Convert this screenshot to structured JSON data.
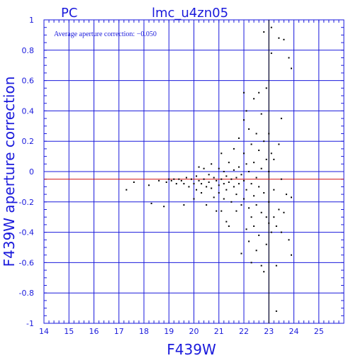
{
  "chart_data": {
    "type": "scatter",
    "title": "lmc_u4zn05",
    "subtitle": "PC",
    "xlabel": "F439W",
    "ylabel": "F439W aperture correction",
    "xlim": [
      14,
      26
    ],
    "ylim": [
      -1,
      1
    ],
    "x_ticks": [
      "14",
      "15",
      "16",
      "17",
      "18",
      "19",
      "20",
      "21",
      "22",
      "23",
      "24",
      "25"
    ],
    "y_ticks": [
      "1",
      "0.8",
      "0.6",
      "0.4",
      "0.2",
      "0",
      "-0.2",
      "-0.4",
      "-0.6",
      "-0.8",
      "-1"
    ],
    "grid": true,
    "annotation": "Average aperture correction: −0.050",
    "reference_lines": {
      "average_y": -0.05,
      "zero_y": 0,
      "vertical_x": 23
    },
    "colors": {
      "axis": "#1a1adc",
      "points": "#000000",
      "average_line": "#d11111"
    },
    "points": [
      [
        17.3,
        -0.12
      ],
      [
        17.6,
        -0.07
      ],
      [
        18.2,
        -0.09
      ],
      [
        18.3,
        -0.21
      ],
      [
        18.6,
        -0.06
      ],
      [
        18.8,
        -0.23
      ],
      [
        18.9,
        -0.07
      ],
      [
        19.0,
        -0.05
      ],
      [
        19.1,
        -0.06
      ],
      [
        19.2,
        -0.05
      ],
      [
        19.3,
        -0.08
      ],
      [
        19.4,
        -0.05
      ],
      [
        19.5,
        -0.06
      ],
      [
        19.6,
        -0.22
      ],
      [
        19.6,
        -0.08
      ],
      [
        19.7,
        -0.04
      ],
      [
        19.8,
        -0.1
      ],
      [
        19.9,
        -0.05
      ],
      [
        20.0,
        -0.08
      ],
      [
        20.0,
        -0.18
      ],
      [
        20.1,
        -0.03
      ],
      [
        20.1,
        -0.12
      ],
      [
        20.2,
        0.03
      ],
      [
        20.2,
        -0.06
      ],
      [
        20.3,
        -0.08
      ],
      [
        20.3,
        -0.14
      ],
      [
        20.4,
        0.02
      ],
      [
        20.4,
        -0.05
      ],
      [
        20.5,
        -0.1
      ],
      [
        20.5,
        -0.22
      ],
      [
        20.6,
        -0.02
      ],
      [
        20.6,
        -0.07
      ],
      [
        20.7,
        -0.11
      ],
      [
        20.7,
        0.05
      ],
      [
        20.8,
        -0.04
      ],
      [
        20.8,
        -0.17
      ],
      [
        20.9,
        -0.06
      ],
      [
        20.9,
        -0.26
      ],
      [
        21.0,
        0.02
      ],
      [
        21.0,
        -0.09
      ],
      [
        21.0,
        -0.14
      ],
      [
        21.1,
        0.12
      ],
      [
        21.1,
        -0.05
      ],
      [
        21.1,
        -0.26
      ],
      [
        21.2,
        0.0
      ],
      [
        21.2,
        -0.08
      ],
      [
        21.2,
        -0.18
      ],
      [
        21.3,
        -0.03
      ],
      [
        21.3,
        -0.33
      ],
      [
        21.3,
        -0.12
      ],
      [
        21.4,
        0.06
      ],
      [
        21.4,
        -0.07
      ],
      [
        21.4,
        -0.36
      ],
      [
        21.5,
        -0.05
      ],
      [
        21.5,
        -0.2
      ],
      [
        21.6,
        0.01
      ],
      [
        21.6,
        0.15
      ],
      [
        21.6,
        -0.1
      ],
      [
        21.7,
        -0.04
      ],
      [
        21.7,
        -0.26
      ],
      [
        21.7,
        -0.15
      ],
      [
        21.8,
        0.22
      ],
      [
        21.8,
        0.03
      ],
      [
        21.8,
        -0.08
      ],
      [
        21.9,
        -0.02
      ],
      [
        21.9,
        -0.22
      ],
      [
        21.9,
        -0.54
      ],
      [
        22.0,
        0.52
      ],
      [
        22.0,
        0.34
      ],
      [
        22.0,
        0.12
      ],
      [
        22.0,
        -0.06
      ],
      [
        22.0,
        -0.18
      ],
      [
        22.1,
        0.4
      ],
      [
        22.1,
        0.05
      ],
      [
        22.1,
        -0.12
      ],
      [
        22.1,
        -0.38
      ],
      [
        22.2,
        0.28
      ],
      [
        22.2,
        0.0
      ],
      [
        22.2,
        -0.24
      ],
      [
        22.2,
        -0.46
      ],
      [
        22.3,
        0.18
      ],
      [
        22.3,
        -0.08
      ],
      [
        22.3,
        -0.3
      ],
      [
        22.3,
        -0.6
      ],
      [
        22.4,
        0.48
      ],
      [
        22.4,
        0.06
      ],
      [
        22.4,
        -0.16
      ],
      [
        22.4,
        -0.36
      ],
      [
        22.5,
        0.25
      ],
      [
        22.5,
        -0.04
      ],
      [
        22.5,
        -0.22
      ],
      [
        22.5,
        -0.52
      ],
      [
        22.6,
        0.52
      ],
      [
        22.6,
        0.14
      ],
      [
        22.6,
        -0.1
      ],
      [
        22.6,
        -0.42
      ],
      [
        22.7,
        0.38
      ],
      [
        22.7,
        0.02
      ],
      [
        22.7,
        -0.27
      ],
      [
        22.7,
        -0.62
      ],
      [
        22.8,
        0.92
      ],
      [
        22.8,
        0.2
      ],
      [
        22.8,
        -0.14
      ],
      [
        22.8,
        -0.66
      ],
      [
        22.9,
        0.55
      ],
      [
        22.9,
        0.08
      ],
      [
        22.9,
        -0.3
      ],
      [
        22.9,
        -0.48
      ],
      [
        23.0,
        0.25
      ],
      [
        23.0,
        0.0
      ],
      [
        23.0,
        -0.2
      ],
      [
        23.0,
        -0.34
      ],
      [
        23.1,
        0.95
      ],
      [
        23.1,
        0.78
      ],
      [
        23.1,
        0.12
      ],
      [
        23.1,
        -0.4
      ],
      [
        23.2,
        0.08
      ],
      [
        23.2,
        -0.12
      ],
      [
        23.2,
        -0.3
      ],
      [
        23.3,
        -0.36
      ],
      [
        23.3,
        -0.62
      ],
      [
        23.3,
        -0.92
      ],
      [
        23.4,
        0.88
      ],
      [
        23.4,
        0.18
      ],
      [
        23.4,
        -0.25
      ],
      [
        23.5,
        0.35
      ],
      [
        23.5,
        -0.05
      ],
      [
        23.5,
        -0.4
      ],
      [
        23.6,
        0.87
      ],
      [
        23.6,
        -0.27
      ],
      [
        23.7,
        -0.15
      ],
      [
        23.8,
        0.75
      ],
      [
        23.8,
        -0.45
      ],
      [
        23.9,
        0.68
      ],
      [
        23.9,
        -0.55
      ],
      [
        23.9,
        -0.17
      ]
    ]
  }
}
